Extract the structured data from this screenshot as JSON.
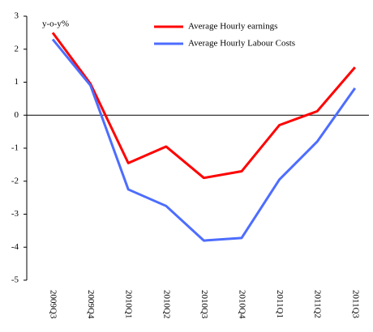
{
  "chart_data": {
    "type": "line",
    "y_label": "y-o-y%",
    "categories": [
      "2009Q3",
      "2009Q4",
      "2010Q1",
      "2010Q2",
      "2010Q3",
      "2010Q4",
      "2011Q1",
      "2011Q2",
      "2011Q3"
    ],
    "series": [
      {
        "name": "Average Hourly earnings",
        "color": "#ff0000",
        "values": [
          2.5,
          0.95,
          -1.45,
          -0.95,
          -1.9,
          -1.7,
          -0.3,
          0.12,
          1.45
        ]
      },
      {
        "name": "Average Hourly Labour Costs",
        "color": "#4d6dff",
        "values": [
          2.3,
          0.9,
          -2.25,
          -2.75,
          -3.8,
          -3.72,
          -1.95,
          -0.8,
          0.82
        ]
      }
    ],
    "ylim": [
      -5,
      3
    ],
    "yticks": [
      -5,
      -4,
      -3,
      -2,
      -1,
      0,
      1,
      2,
      3
    ],
    "legend": "top-right"
  }
}
